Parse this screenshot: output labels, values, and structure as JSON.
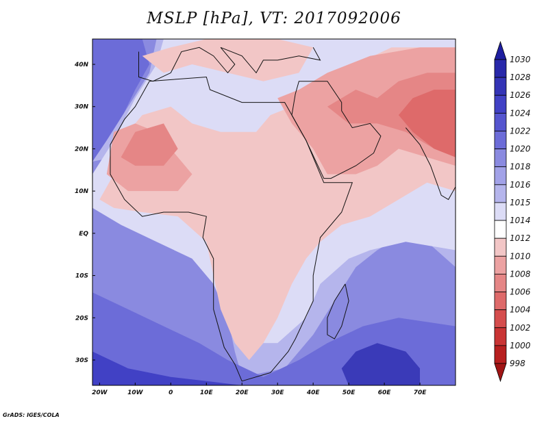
{
  "title": "MSLP [hPa], VT: 2017092006",
  "credit": "GrADS: IGES/COLA",
  "map": {
    "projection": "lat-lon",
    "lon_range": [
      -22,
      80
    ],
    "lat_range": [
      -36,
      46
    ],
    "lon_ticks": [
      {
        "value": -20,
        "label": "20W"
      },
      {
        "value": -10,
        "label": "10W"
      },
      {
        "value": 0,
        "label": "0"
      },
      {
        "value": 10,
        "label": "10E"
      },
      {
        "value": 20,
        "label": "20E"
      },
      {
        "value": 30,
        "label": "30E"
      },
      {
        "value": 40,
        "label": "40E"
      },
      {
        "value": 50,
        "label": "50E"
      },
      {
        "value": 60,
        "label": "60E"
      },
      {
        "value": 70,
        "label": "70E"
      }
    ],
    "lat_ticks": [
      {
        "value": 40,
        "label": "40N"
      },
      {
        "value": 30,
        "label": "30N"
      },
      {
        "value": 20,
        "label": "20N"
      },
      {
        "value": 10,
        "label": "10N"
      },
      {
        "value": 0,
        "label": "EQ"
      },
      {
        "value": -10,
        "label": "10S"
      },
      {
        "value": -20,
        "label": "20S"
      },
      {
        "value": -30,
        "label": "30S"
      }
    ],
    "regions": [
      {
        "name": "background-ocean-high",
        "fill": "#8a8ae0",
        "pts": [
          [
            -22,
            -36
          ],
          [
            80,
            -36
          ],
          [
            80,
            46
          ],
          [
            -22,
            46
          ]
        ]
      },
      {
        "name": "north-atlantic-high",
        "fill": "#6c6cd8",
        "pts": [
          [
            -22,
            46
          ],
          [
            -8,
            46
          ],
          [
            -6,
            40
          ],
          [
            -10,
            34
          ],
          [
            -14,
            27
          ],
          [
            -18,
            20
          ],
          [
            -22,
            17
          ]
        ]
      },
      {
        "name": "atlantic-1016",
        "fill": "#b5b5ec",
        "pts": [
          [
            -22,
            17
          ],
          [
            -16,
            18
          ],
          [
            -10,
            8
          ],
          [
            -2,
            0
          ],
          [
            6,
            -6
          ],
          [
            12,
            -12
          ],
          [
            16,
            -20
          ],
          [
            18,
            -28
          ],
          [
            20,
            -34
          ],
          [
            32,
            -32
          ],
          [
            40,
            -24
          ],
          [
            46,
            -16
          ],
          [
            52,
            -8
          ],
          [
            58,
            -4
          ],
          [
            66,
            0
          ],
          [
            72,
            -2
          ],
          [
            80,
            -8
          ],
          [
            80,
            46
          ],
          [
            -4,
            46
          ],
          [
            -6,
            38
          ],
          [
            -12,
            30
          ],
          [
            -18,
            22
          ]
        ]
      },
      {
        "name": "tropical-1015",
        "fill": "#dcdcf6",
        "pts": [
          [
            -22,
            6
          ],
          [
            -14,
            2
          ],
          [
            -4,
            -2
          ],
          [
            6,
            -6
          ],
          [
            12,
            -12
          ],
          [
            16,
            -20
          ],
          [
            20,
            -26
          ],
          [
            30,
            -26
          ],
          [
            38,
            -20
          ],
          [
            42,
            -12
          ],
          [
            50,
            -6
          ],
          [
            56,
            -4
          ],
          [
            66,
            -2
          ],
          [
            80,
            -4
          ],
          [
            80,
            46
          ],
          [
            -2,
            46
          ],
          [
            -4,
            40
          ],
          [
            -10,
            32
          ],
          [
            -16,
            22
          ],
          [
            -22,
            14
          ]
        ]
      },
      {
        "name": "africa-1012",
        "fill": "#f2c6c6",
        "pts": [
          [
            -20,
            8
          ],
          [
            -16,
            14
          ],
          [
            -14,
            22
          ],
          [
            -8,
            28
          ],
          [
            0,
            30
          ],
          [
            6,
            26
          ],
          [
            14,
            24
          ],
          [
            24,
            24
          ],
          [
            28,
            28
          ],
          [
            34,
            30
          ],
          [
            42,
            36
          ],
          [
            52,
            40
          ],
          [
            62,
            44
          ],
          [
            80,
            44
          ],
          [
            80,
            10
          ],
          [
            72,
            12
          ],
          [
            64,
            8
          ],
          [
            56,
            4
          ],
          [
            48,
            2
          ],
          [
            42,
            -2
          ],
          [
            38,
            -6
          ],
          [
            34,
            -12
          ],
          [
            30,
            -20
          ],
          [
            26,
            -26
          ],
          [
            22,
            -30
          ],
          [
            18,
            -26
          ],
          [
            14,
            -18
          ],
          [
            12,
            -10
          ],
          [
            10,
            -2
          ],
          [
            2,
            4
          ],
          [
            -8,
            5
          ],
          [
            -16,
            6
          ]
        ]
      },
      {
        "name": "mediterranean-1012",
        "fill": "#f2c6c6",
        "pts": [
          [
            -8,
            42
          ],
          [
            0,
            44
          ],
          [
            10,
            46
          ],
          [
            30,
            46
          ],
          [
            40,
            44
          ],
          [
            36,
            38
          ],
          [
            26,
            36
          ],
          [
            16,
            38
          ],
          [
            6,
            40
          ],
          [
            -2,
            38
          ]
        ]
      },
      {
        "name": "sahara-1010",
        "fill": "#eca2a2",
        "pts": [
          [
            -18,
            14
          ],
          [
            -16,
            24
          ],
          [
            -10,
            26
          ],
          [
            -4,
            24
          ],
          [
            2,
            18
          ],
          [
            6,
            14
          ],
          [
            2,
            10
          ],
          [
            -6,
            10
          ],
          [
            -12,
            10
          ]
        ]
      },
      {
        "name": "arabia-1010",
        "fill": "#eca2a2",
        "pts": [
          [
            30,
            32
          ],
          [
            36,
            34
          ],
          [
            44,
            38
          ],
          [
            56,
            42
          ],
          [
            70,
            44
          ],
          [
            80,
            44
          ],
          [
            80,
            16
          ],
          [
            72,
            18
          ],
          [
            64,
            20
          ],
          [
            58,
            16
          ],
          [
            52,
            14
          ],
          [
            44,
            14
          ],
          [
            40,
            20
          ],
          [
            34,
            26
          ]
        ]
      },
      {
        "name": "mali-1008",
        "fill": "#e58686",
        "pts": [
          [
            -14,
            18
          ],
          [
            -10,
            24
          ],
          [
            -2,
            26
          ],
          [
            2,
            20
          ],
          [
            -2,
            16
          ],
          [
            -10,
            16
          ]
        ]
      },
      {
        "name": "iran-1008",
        "fill": "#e58686",
        "pts": [
          [
            44,
            30
          ],
          [
            52,
            34
          ],
          [
            58,
            32
          ],
          [
            64,
            36
          ],
          [
            72,
            38
          ],
          [
            80,
            38
          ],
          [
            80,
            20
          ],
          [
            74,
            20
          ],
          [
            66,
            24
          ],
          [
            58,
            26
          ],
          [
            50,
            26
          ]
        ]
      },
      {
        "name": "india-1006",
        "fill": "#de6a6a",
        "pts": [
          [
            64,
            28
          ],
          [
            68,
            32
          ],
          [
            74,
            34
          ],
          [
            80,
            34
          ],
          [
            80,
            18
          ],
          [
            74,
            20
          ],
          [
            68,
            24
          ]
        ]
      },
      {
        "name": "southern-1020",
        "fill": "#6c6cd8",
        "pts": [
          [
            -22,
            -36
          ],
          [
            -22,
            -14
          ],
          [
            -12,
            -18
          ],
          [
            -2,
            -22
          ],
          [
            8,
            -26
          ],
          [
            16,
            -30
          ],
          [
            26,
            -34
          ],
          [
            36,
            -30
          ],
          [
            44,
            -26
          ],
          [
            54,
            -22
          ],
          [
            64,
            -20
          ],
          [
            80,
            -22
          ],
          [
            80,
            -36
          ]
        ]
      },
      {
        "name": "southern-1024",
        "fill": "#4141c5",
        "pts": [
          [
            -22,
            -36
          ],
          [
            -22,
            -28
          ],
          [
            -12,
            -32
          ],
          [
            0,
            -34
          ],
          [
            10,
            -35
          ],
          [
            20,
            -36
          ]
        ]
      },
      {
        "name": "indian-ocean-high",
        "fill": "#3a3ab8",
        "pts": [
          [
            48,
            -32
          ],
          [
            52,
            -28
          ],
          [
            58,
            -26
          ],
          [
            66,
            -28
          ],
          [
            70,
            -32
          ],
          [
            70,
            -36
          ],
          [
            50,
            -36
          ]
        ]
      }
    ],
    "borders": [
      {
        "name": "africa-coastline",
        "pts": [
          [
            -6,
            36
          ],
          [
            10,
            37
          ],
          [
            11,
            34
          ],
          [
            20,
            31
          ],
          [
            30,
            31
          ],
          [
            32,
            31
          ],
          [
            34,
            28
          ],
          [
            38,
            22
          ],
          [
            43,
            12
          ],
          [
            51,
            12
          ],
          [
            48,
            5
          ],
          [
            42,
            -1
          ],
          [
            40,
            -10
          ],
          [
            40,
            -16
          ],
          [
            35,
            -25
          ],
          [
            33,
            -28
          ],
          [
            28,
            -33
          ],
          [
            20,
            -35
          ],
          [
            18,
            -31
          ],
          [
            15,
            -27
          ],
          [
            12,
            -18
          ],
          [
            12,
            -6
          ],
          [
            9,
            -1
          ],
          [
            10,
            4
          ],
          [
            5,
            5
          ],
          [
            -2,
            5
          ],
          [
            -8,
            4
          ],
          [
            -13,
            8
          ],
          [
            -17,
            14
          ],
          [
            -17,
            21
          ],
          [
            -13,
            27
          ],
          [
            -10,
            30
          ],
          [
            -6,
            36
          ]
        ]
      },
      {
        "name": "arabia-coastline",
        "pts": [
          [
            34,
            28
          ],
          [
            38,
            22
          ],
          [
            43,
            13
          ],
          [
            45,
            13
          ],
          [
            52,
            16
          ],
          [
            57,
            19
          ],
          [
            59,
            23
          ],
          [
            56,
            26
          ],
          [
            51,
            25
          ],
          [
            48,
            29
          ],
          [
            48,
            31
          ],
          [
            44,
            36
          ],
          [
            36,
            36
          ],
          [
            35,
            33
          ],
          [
            34,
            28
          ]
        ]
      },
      {
        "name": "madagascar",
        "pts": [
          [
            49,
            -12
          ],
          [
            50,
            -16
          ],
          [
            48,
            -22
          ],
          [
            46,
            -25
          ],
          [
            44,
            -24
          ],
          [
            44,
            -20
          ],
          [
            46,
            -16
          ],
          [
            49,
            -12
          ]
        ]
      },
      {
        "name": "india-coastline",
        "pts": [
          [
            66,
            25
          ],
          [
            70,
            21
          ],
          [
            73,
            16
          ],
          [
            76,
            9
          ],
          [
            78,
            8
          ],
          [
            80,
            11
          ],
          [
            80,
            44
          ]
        ]
      },
      {
        "name": "europe-coastline",
        "pts": [
          [
            -9,
            43
          ],
          [
            -9,
            37
          ],
          [
            -5,
            36
          ],
          [
            0,
            38
          ],
          [
            3,
            43
          ],
          [
            8,
            44
          ],
          [
            12,
            42
          ],
          [
            16,
            38
          ],
          [
            18,
            40
          ],
          [
            14,
            44
          ],
          [
            20,
            42
          ],
          [
            24,
            38
          ],
          [
            26,
            41
          ],
          [
            30,
            41
          ],
          [
            36,
            42
          ],
          [
            42,
            41
          ],
          [
            40,
            44
          ]
        ]
      }
    ]
  },
  "colorbar": {
    "levels": [
      "1030",
      "1028",
      "1026",
      "1024",
      "1022",
      "1020",
      "1018",
      "1016",
      "1015",
      "1014",
      "1012",
      "1010",
      "1008",
      "1006",
      "1004",
      "1002",
      "1000",
      "998"
    ],
    "colors": [
      "#1e1ea0",
      "#2828aa",
      "#3434b6",
      "#4141c5",
      "#5555cf",
      "#6c6cd8",
      "#8a8ae0",
      "#a2a2e8",
      "#b5b5ec",
      "#dcdcf6",
      "#ffffff",
      "#f2c6c6",
      "#eca2a2",
      "#e58686",
      "#de6a6a",
      "#d54d4d",
      "#c93434",
      "#b71f1f",
      "#a01414"
    ]
  }
}
